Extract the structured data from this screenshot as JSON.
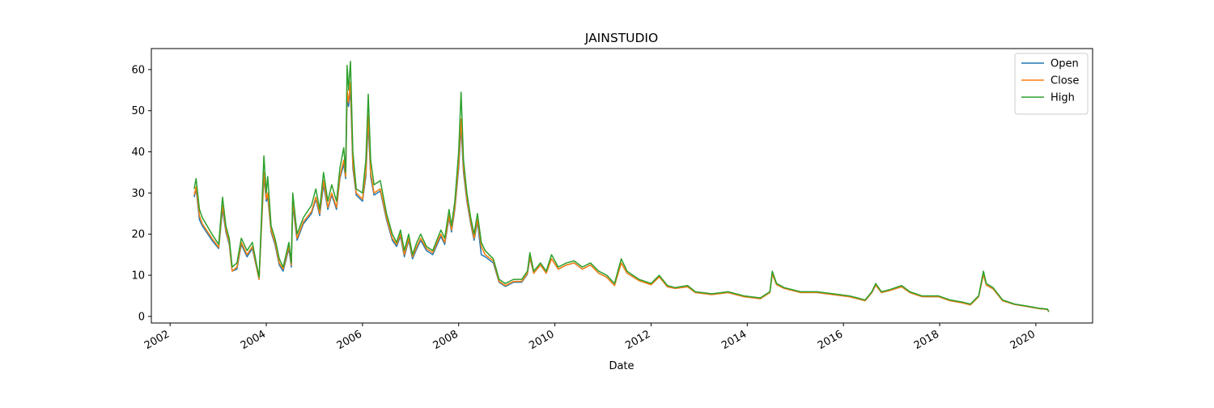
{
  "chart_data": {
    "type": "line",
    "title": "JAINSTUDIO",
    "x_label": "Date",
    "x": [
      2002.5,
      2002.54,
      2002.61,
      2002.67,
      2002.87,
      2003.01,
      2003.09,
      2003.16,
      2003.23,
      2003.29,
      2003.39,
      2003.48,
      2003.6,
      2003.71,
      2003.85,
      2003.95,
      2004.0,
      2004.03,
      2004.1,
      2004.18,
      2004.27,
      2004.35,
      2004.47,
      2004.52,
      2004.55,
      2004.64,
      2004.77,
      2004.94,
      2005.03,
      2005.11,
      2005.19,
      2005.28,
      2005.36,
      2005.46,
      2005.53,
      2005.61,
      2005.65,
      2005.68,
      2005.71,
      2005.75,
      2005.8,
      2005.87,
      2006.0,
      2006.07,
      2006.12,
      2006.17,
      2006.24,
      2006.37,
      2006.5,
      2006.62,
      2006.71,
      2006.79,
      2006.87,
      2006.96,
      2007.04,
      2007.13,
      2007.21,
      2007.33,
      2007.46,
      2007.63,
      2007.71,
      2007.8,
      2007.85,
      2007.92,
      2008.0,
      2008.05,
      2008.1,
      2008.17,
      2008.25,
      2008.32,
      2008.39,
      2008.47,
      2008.55,
      2008.72,
      2008.84,
      2008.97,
      2009.14,
      2009.31,
      2009.43,
      2009.48,
      2009.56,
      2009.7,
      2009.82,
      2009.93,
      2010.07,
      2010.24,
      2010.4,
      2010.57,
      2010.74,
      2010.91,
      2011.08,
      2011.24,
      2011.38,
      2011.5,
      2011.75,
      2012.0,
      2012.17,
      2012.34,
      2012.5,
      2012.76,
      2012.92,
      2013.26,
      2013.6,
      2013.93,
      2014.27,
      2014.47,
      2014.52,
      2014.61,
      2014.77,
      2015.11,
      2015.45,
      2015.78,
      2016.12,
      2016.29,
      2016.45,
      2016.59,
      2016.67,
      2016.79,
      2016.96,
      2017.21,
      2017.38,
      2017.63,
      2017.97,
      2018.22,
      2018.47,
      2018.64,
      2018.81,
      2018.91,
      2018.97,
      2019.11,
      2019.31,
      2019.56,
      2019.82,
      2020.07,
      2020.24,
      2020.27
    ],
    "series": [
      {
        "name": "Open",
        "color": "#1f77b4",
        "values": [
          29,
          31,
          23.5,
          22,
          18.5,
          16.5,
          26,
          20.5,
          17.5,
          11,
          11.5,
          17.5,
          14.5,
          16.5,
          9,
          34,
          28,
          29,
          20.5,
          17.5,
          12.5,
          11,
          16.5,
          12,
          27,
          18.5,
          22.5,
          25,
          28.5,
          24.5,
          32,
          26,
          29.5,
          26,
          33.5,
          37,
          33.5,
          53,
          51,
          55,
          36,
          29.5,
          28,
          34,
          47,
          34,
          29.5,
          30.5,
          23.5,
          18.5,
          17,
          19.5,
          14.5,
          18.5,
          14,
          16.5,
          18.5,
          16,
          15,
          19.5,
          17.5,
          24,
          20.5,
          26,
          36,
          46,
          35,
          28,
          22.5,
          18.5,
          23,
          15,
          14.5,
          13,
          8.3,
          7.3,
          8.3,
          8.3,
          10.3,
          14.2,
          10.5,
          12.5,
          10.5,
          14,
          11.5,
          12.5,
          13,
          11.5,
          12.5,
          10.5,
          9.5,
          7.5,
          13,
          10.5,
          8.7,
          7.7,
          9.6,
          7.2,
          6.8,
          7.2,
          5.8,
          5.3,
          5.8,
          4.8,
          4.3,
          5.8,
          10.3,
          7.7,
          6.8,
          5.8,
          5.8,
          5.3,
          4.8,
          4.3,
          3.8,
          5.8,
          7.6,
          5.8,
          6.3,
          7.2,
          5.8,
          4.8,
          4.8,
          3.8,
          3.3,
          2.8,
          4.8,
          10.2,
          7.6,
          6.7,
          3.8,
          2.9,
          2.4,
          1.9,
          1.7,
          1.1
        ]
      },
      {
        "name": "Close",
        "color": "#ff7f0e",
        "values": [
          29.5,
          31.5,
          24.5,
          22.5,
          19,
          16.8,
          27,
          21,
          18,
          11,
          12,
          18,
          15,
          17,
          9,
          35,
          28.5,
          30,
          21,
          18,
          13,
          11.5,
          17,
          12.5,
          28,
          19,
          23,
          25.5,
          29,
          25,
          33,
          26.5,
          30,
          26.5,
          34,
          38,
          34,
          55,
          52,
          57,
          37,
          30,
          28.5,
          35,
          49,
          35,
          30,
          31,
          24,
          19,
          17.5,
          20,
          15,
          19,
          14.5,
          17,
          19,
          16.5,
          15.5,
          20,
          18,
          24.5,
          21,
          26.5,
          37,
          48,
          36,
          28.5,
          23,
          19,
          23.5,
          17,
          15,
          13.5,
          8.5,
          7.5,
          8.5,
          8.5,
          10.5,
          14.5,
          10.5,
          12.5,
          10.5,
          14,
          11.5,
          12.5,
          13,
          11.5,
          12.5,
          10.5,
          9.5,
          7.5,
          13,
          10.5,
          8.7,
          7.7,
          9.6,
          7.2,
          6.8,
          7.2,
          5.8,
          5.3,
          5.8,
          4.8,
          4.3,
          5.8,
          10.3,
          7.7,
          6.8,
          5.8,
          5.8,
          5.3,
          4.8,
          4.3,
          3.8,
          5.8,
          7.6,
          5.8,
          6.3,
          7.2,
          5.8,
          4.8,
          4.8,
          3.8,
          3.3,
          2.8,
          4.8,
          10.2,
          7.6,
          6.7,
          3.8,
          2.9,
          2.4,
          1.9,
          1.7,
          1.1
        ]
      },
      {
        "name": "High",
        "color": "#2ca02c",
        "values": [
          31,
          33.5,
          26,
          24,
          20,
          17.5,
          29,
          22,
          19,
          12,
          13,
          19,
          16,
          18,
          9.5,
          39,
          30,
          34,
          22,
          19,
          14,
          12,
          18,
          13,
          30,
          20,
          24,
          27,
          31,
          26,
          35,
          28,
          32,
          28,
          36,
          41,
          35,
          61,
          55,
          62,
          40,
          31,
          30,
          38,
          54,
          38,
          32,
          33,
          25,
          20,
          18,
          21,
          16,
          20,
          15,
          18,
          20,
          17,
          16,
          21,
          19,
          26,
          22,
          28,
          40,
          54.5,
          38,
          30,
          24,
          20,
          25,
          18,
          16,
          14,
          9,
          8,
          9,
          9,
          11,
          15.5,
          11,
          13,
          11,
          15,
          12,
          13,
          13.5,
          12,
          13,
          11,
          10,
          8,
          14,
          11,
          9,
          8,
          10,
          7.5,
          7,
          7.5,
          6,
          5.5,
          6,
          5,
          4.5,
          6,
          11,
          8,
          7,
          6,
          6,
          5.5,
          5,
          4.5,
          4,
          6,
          8,
          6,
          6.5,
          7.5,
          6,
          5,
          5,
          4,
          3.5,
          3,
          5,
          11,
          8,
          7,
          4,
          3,
          2.5,
          2,
          1.8,
          1.2
        ]
      }
    ],
    "xlim": [
      2001.61,
      2021.18
    ],
    "xticks": [
      2002,
      2004,
      2006,
      2008,
      2010,
      2012,
      2014,
      2016,
      2018,
      2020
    ],
    "ylim": [
      -1.6,
      65.1
    ],
    "yticks": [
      0,
      10,
      20,
      30,
      40,
      50,
      60
    ],
    "legend": "upper right"
  }
}
